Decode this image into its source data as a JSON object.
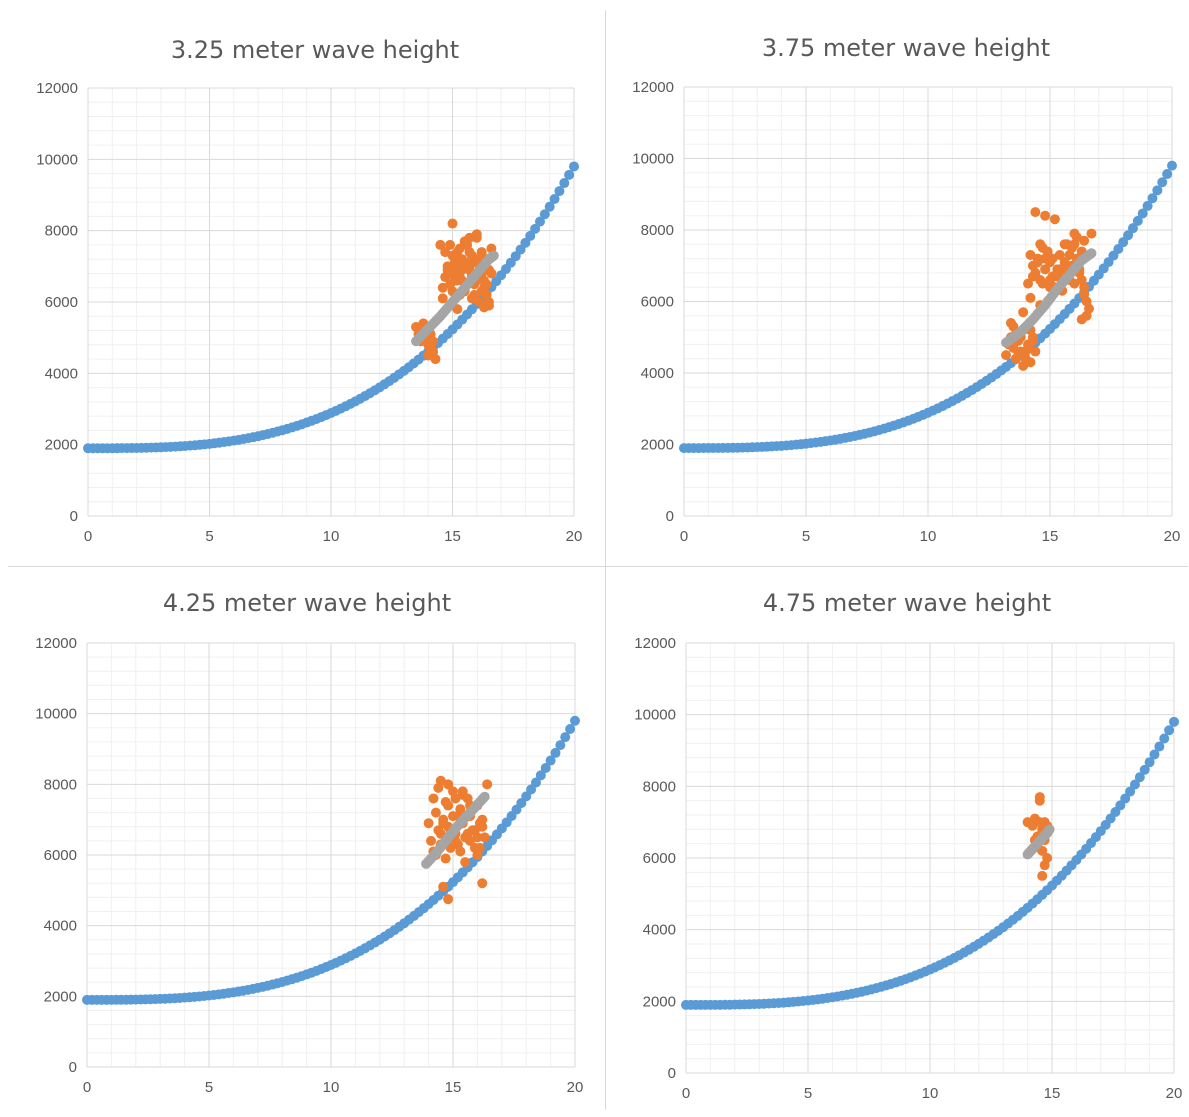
{
  "colors": {
    "model_curve": "#5b9bd5",
    "observed": "#ed7d31",
    "trend": "#a5a5a5",
    "gridline_major": "#d9d9d9",
    "gridline_minor": "#f0f0f0",
    "text": "#595959"
  },
  "chart_data": [
    {
      "type": "scatter",
      "title": "3.25 meter wave height",
      "xlabel": "",
      "ylabel": "",
      "xlim": [
        0,
        20
      ],
      "ylim": [
        0,
        12000
      ],
      "x_ticks": [
        "0",
        "5",
        "10",
        "15",
        "20"
      ],
      "y_ticks": [
        "0",
        "2000",
        "4000",
        "6000",
        "8000",
        "10000",
        "12000"
      ],
      "grid": true,
      "legend": "none",
      "series": [
        {
          "color": "#5b9bd5",
          "x_range": [
            0,
            20
          ],
          "x_step": 0.2,
          "formula": "y = 1900 + 7900*(x/20)^3",
          "x": [
            0,
            2,
            4,
            6,
            8,
            10,
            12,
            13,
            14,
            15,
            16,
            17,
            18,
            19,
            20
          ],
          "y": [
            1900,
            1910,
            1960,
            2070,
            2410,
            2890,
            3600,
            4000,
            4560,
            5220,
            5950,
            6730,
            7560,
            8600,
            9800
          ]
        },
        {
          "color": "#ed7d31",
          "x": [
            13.5,
            13.6,
            13.7,
            13.8,
            13.9,
            14.0,
            14.1,
            14.2,
            13.9,
            14.0,
            14.1,
            14.2,
            13.8,
            14.3,
            14.6,
            14.7,
            14.8,
            14.9,
            15.0,
            15.1,
            15.2,
            15.3,
            15.4,
            15.5,
            15.6,
            15.7,
            15.8,
            15.9,
            16.0,
            16.1,
            16.2,
            16.3,
            16.4,
            16.5,
            16.6,
            14.7,
            14.8,
            14.9,
            15.0,
            15.1,
            15.2,
            15.3,
            15.4,
            15.5,
            15.6,
            15.7,
            15.8,
            15.9,
            16.0,
            16.1,
            16.2,
            16.3,
            16.4,
            16.5,
            15.0,
            15.2,
            15.4,
            15.6,
            15.8,
            16.0,
            16.2,
            16.4,
            14.9,
            15.1,
            15.3,
            15.5,
            15.7,
            15.9,
            16.1,
            16.3,
            15.0,
            15.5,
            16.0,
            16.5,
            15.2,
            15.8,
            16.3,
            14.5,
            14.6,
            15.1,
            16.6,
            16.2,
            15.7,
            15.3
          ],
          "y": [
            5300,
            5100,
            4900,
            5200,
            5000,
            4800,
            4700,
            4600,
            5300,
            4500,
            5100,
            4900,
            5400,
            4400,
            6100,
            6700,
            7000,
            6500,
            6800,
            7200,
            6900,
            7100,
            6600,
            6300,
            7000,
            7400,
            6800,
            6500,
            7100,
            6700,
            7300,
            6400,
            6200,
            6900,
            7500,
            7400,
            6900,
            7600,
            7300,
            6600,
            7400,
            7500,
            7200,
            7000,
            7600,
            6900,
            6700,
            7200,
            7800,
            6800,
            6300,
            7000,
            6500,
            6000,
            6300,
            6600,
            6900,
            7100,
            7300,
            6600,
            6800,
            7200,
            6800,
            7100,
            6700,
            6400,
            7000,
            6200,
            6000,
            6600,
            8200,
            7700,
            7900,
            5900,
            5800,
            6100,
            5850,
            7600,
            6400,
            6900,
            6800,
            7400,
            7800,
            6200
          ]
        },
        {
          "color": "#a5a5a5",
          "x": [
            13.5,
            14.0,
            14.5,
            15.0,
            15.5,
            16.0,
            16.5,
            16.7
          ],
          "y": [
            4900,
            5250,
            5600,
            6000,
            6400,
            6800,
            7200,
            7300
          ]
        }
      ]
    },
    {
      "type": "scatter",
      "title": "3.75 meter wave height",
      "xlabel": "",
      "ylabel": "",
      "xlim": [
        0,
        20
      ],
      "ylim": [
        0,
        12000
      ],
      "x_ticks": [
        "0",
        "5",
        "10",
        "15",
        "20"
      ],
      "y_ticks": [
        "0",
        "2000",
        "4000",
        "6000",
        "8000",
        "10000",
        "12000"
      ],
      "grid": true,
      "legend": "none",
      "series": [
        {
          "color": "#5b9bd5",
          "x_range": [
            0,
            20
          ],
          "x_step": 0.2,
          "formula": "y = 1900 + 7900*(x/20)^3",
          "x": [
            0,
            2,
            4,
            6,
            8,
            10,
            12,
            13,
            14,
            15,
            16,
            17,
            18,
            19,
            20
          ],
          "y": [
            1900,
            1910,
            1960,
            2070,
            2410,
            2890,
            3600,
            4000,
            4560,
            5220,
            5950,
            6730,
            7560,
            8600,
            9800
          ]
        },
        {
          "color": "#ed7d31",
          "x": [
            13.2,
            13.3,
            13.4,
            13.5,
            13.6,
            13.7,
            13.8,
            13.9,
            14.0,
            14.1,
            14.2,
            14.3,
            14.4,
            13.5,
            13.7,
            13.9,
            14.1,
            14.3,
            13.4,
            13.6,
            13.8,
            14.0,
            14.2,
            14.1,
            14.3,
            14.5,
            14.6,
            14.7,
            14.8,
            14.9,
            15.0,
            15.1,
            15.2,
            15.3,
            15.4,
            15.5,
            15.6,
            15.7,
            15.8,
            15.9,
            16.0,
            16.1,
            16.2,
            16.3,
            16.4,
            16.5,
            16.6,
            16.7,
            14.2,
            14.4,
            14.6,
            14.8,
            15.0,
            15.2,
            15.4,
            15.6,
            15.8,
            16.0,
            16.2,
            16.4,
            14.3,
            14.5,
            14.7,
            14.9,
            15.1,
            15.3,
            15.5,
            15.7,
            15.9,
            16.1,
            16.3,
            14.4,
            14.8,
            15.2,
            15.6,
            16.0,
            16.4,
            13.9,
            14.2,
            15.0,
            14.6,
            16.5,
            16.3
          ],
          "y": [
            4500,
            4800,
            5000,
            4700,
            5100,
            4900,
            4600,
            5200,
            4400,
            4800,
            4300,
            5000,
            4600,
            5300,
            4500,
            4200,
            4700,
            4900,
            5400,
            4400,
            5000,
            4600,
            5200,
            6500,
            7000,
            7200,
            6600,
            7500,
            6900,
            7400,
            7100,
            6700,
            6400,
            6900,
            7300,
            6800,
            7100,
            7600,
            6600,
            7000,
            6500,
            7200,
            6900,
            7400,
            7700,
            6000,
            5800,
            7900,
            7300,
            6800,
            7600,
            7200,
            6600,
            6300,
            6900,
            7000,
            7300,
            7600,
            6800,
            6200,
            6700,
            7100,
            6500,
            6000,
            7200,
            6700,
            6300,
            6900,
            7500,
            7800,
            6600,
            8500,
            8400,
            8300,
            7600,
            7900,
            6400,
            5700,
            6100,
            6400,
            5900,
            5600,
            5500
          ]
        },
        {
          "color": "#a5a5a5",
          "x": [
            13.2,
            13.8,
            14.3,
            14.8,
            15.3,
            15.8,
            16.3,
            16.7
          ],
          "y": [
            4850,
            5150,
            5500,
            5900,
            6350,
            6750,
            7150,
            7350
          ]
        }
      ]
    },
    {
      "type": "scatter",
      "title": "4.25 meter wave height",
      "xlabel": "",
      "ylabel": "",
      "xlim": [
        0,
        20
      ],
      "ylim": [
        0,
        12000
      ],
      "x_ticks": [
        "0",
        "5",
        "10",
        "15",
        "20"
      ],
      "y_ticks": [
        "0",
        "2000",
        "4000",
        "6000",
        "8000",
        "10000",
        "12000"
      ],
      "grid": true,
      "legend": "none",
      "series": [
        {
          "color": "#5b9bd5",
          "x_range": [
            0,
            20
          ],
          "x_step": 0.2,
          "formula": "y = 1900 + 7900*(x/20)^3",
          "x": [
            0,
            2,
            4,
            6,
            8,
            10,
            12,
            13,
            14,
            15,
            16,
            17,
            18,
            19,
            20
          ],
          "y": [
            1900,
            1910,
            1960,
            2070,
            2410,
            2890,
            3600,
            4000,
            4560,
            5220,
            5950,
            6730,
            7560,
            8600,
            9800
          ]
        },
        {
          "color": "#ed7d31",
          "x": [
            14.0,
            14.1,
            14.2,
            14.3,
            14.4,
            14.5,
            14.6,
            14.7,
            14.8,
            14.9,
            15.0,
            15.1,
            15.2,
            15.3,
            15.4,
            15.5,
            15.6,
            15.7,
            15.8,
            15.9,
            16.0,
            16.1,
            16.2,
            16.3,
            14.2,
            14.4,
            14.6,
            14.8,
            15.0,
            15.2,
            15.4,
            15.6,
            15.8,
            16.0,
            16.2,
            14.3,
            14.5,
            14.7,
            14.9,
            15.1,
            15.3,
            15.5,
            15.7,
            15.9,
            16.1,
            14.5,
            14.8,
            15.1,
            15.4,
            15.7,
            16.0,
            16.4,
            14.6,
            14.8,
            16.2
          ],
          "y": [
            6900,
            6400,
            6100,
            7200,
            6700,
            6300,
            7000,
            7500,
            6800,
            6200,
            7100,
            6600,
            6300,
            7300,
            6900,
            6500,
            7600,
            7100,
            6700,
            6200,
            7400,
            6900,
            7000,
            6500,
            7600,
            7900,
            6900,
            7400,
            7800,
            7100,
            7700,
            6600,
            7300,
            6500,
            6800,
            6000,
            6600,
            5900,
            6700,
            6400,
            6100,
            5800,
            6400,
            6700,
            6200,
            8100,
            8000,
            7600,
            7800,
            7400,
            6000,
            8000,
            5100,
            4750,
            5200
          ]
        },
        {
          "color": "#a5a5a5",
          "x": [
            13.9,
            14.3,
            14.7,
            15.1,
            15.5,
            15.9,
            16.3
          ],
          "y": [
            5750,
            6050,
            6400,
            6750,
            7050,
            7350,
            7650
          ]
        }
      ]
    },
    {
      "type": "scatter",
      "title": "4.75 meter wave height",
      "xlabel": "",
      "ylabel": "",
      "xlim": [
        0,
        20
      ],
      "ylim": [
        0,
        12000
      ],
      "x_ticks": [
        "0",
        "5",
        "10",
        "15",
        "20"
      ],
      "y_ticks": [
        "0",
        "2000",
        "4000",
        "6000",
        "8000",
        "10000",
        "12000"
      ],
      "grid": true,
      "legend": "none",
      "series": [
        {
          "color": "#5b9bd5",
          "x_range": [
            0,
            20
          ],
          "x_step": 0.2,
          "formula": "y = 1900 + 7900*(x/20)^3",
          "x": [
            0,
            2,
            4,
            6,
            8,
            10,
            12,
            13,
            14,
            15,
            16,
            17,
            18,
            19,
            20
          ],
          "y": [
            1900,
            1910,
            1960,
            2070,
            2410,
            2890,
            3600,
            4000,
            4560,
            5220,
            5950,
            6730,
            7560,
            8600,
            9800
          ]
        },
        {
          "color": "#ed7d31",
          "x": [
            14.0,
            14.2,
            14.3,
            14.4,
            14.5,
            14.5,
            14.6,
            14.6,
            14.7,
            14.7,
            14.8,
            14.8,
            14.4,
            14.6,
            14.7,
            14.5,
            14.8,
            14.3
          ],
          "y": [
            7000,
            6900,
            7100,
            6600,
            7700,
            7600,
            6800,
            6200,
            7000,
            6500,
            6700,
            6000,
            6300,
            5500,
            5800,
            7000,
            6900,
            6500
          ]
        },
        {
          "color": "#a5a5a5",
          "x": [
            14.0,
            14.2,
            14.4,
            14.6,
            14.8,
            14.9
          ],
          "y": [
            6100,
            6250,
            6400,
            6550,
            6700,
            6800
          ]
        }
      ]
    }
  ]
}
